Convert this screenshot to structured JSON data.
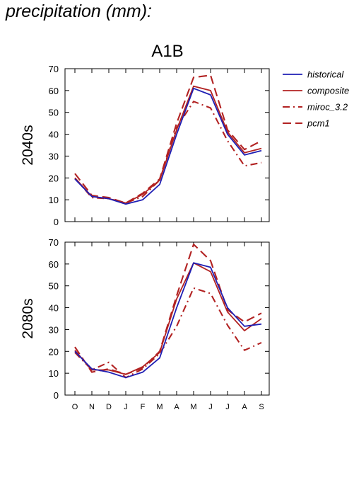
{
  "header": {
    "title": "precipitation (mm):"
  },
  "chart_data": {
    "type": "line",
    "title": "A1B",
    "categories": [
      "O",
      "N",
      "D",
      "J",
      "F",
      "M",
      "A",
      "M",
      "J",
      "J",
      "A",
      "S"
    ],
    "ylim": [
      0,
      70
    ],
    "yticks": [
      0,
      10,
      20,
      30,
      40,
      50,
      60,
      70
    ],
    "grid": false,
    "legend_position": "right",
    "series_styles": [
      {
        "name": "historical",
        "color": "#1f1fb4",
        "dash": "solid"
      },
      {
        "name": "composite",
        "color": "#b22222",
        "dash": "solid"
      },
      {
        "name": "miroc_3.2",
        "color": "#b22222",
        "dash": "dashdot"
      },
      {
        "name": "pcm1",
        "color": "#b22222",
        "dash": "dashed"
      }
    ],
    "panels": [
      {
        "label": "2040s",
        "series": [
          {
            "name": "historical",
            "values": [
              19.5,
              11.5,
              10.5,
              8,
              10,
              17,
              40,
              61,
              58,
              40,
              30.5,
              32.5
            ]
          },
          {
            "name": "composite",
            "values": [
              20,
              11.5,
              10.5,
              8.5,
              12.5,
              19,
              42,
              62,
              60,
              41,
              31.5,
              33.5
            ]
          },
          {
            "name": "miroc_3.2",
            "values": [
              20,
              11,
              10.5,
              8.5,
              11.5,
              19,
              43,
              55,
              52,
              37,
              25.5,
              27
            ]
          },
          {
            "name": "pcm1",
            "values": [
              22,
              12,
              11,
              8.5,
              13,
              19.5,
              45,
              66,
              67,
              42,
              33,
              37
            ]
          }
        ]
      },
      {
        "label": "2080s",
        "series": [
          {
            "name": "historical",
            "values": [
              20,
              12,
              10.5,
              8,
              10.5,
              17,
              40,
              60.5,
              58.5,
              40,
              31.5,
              32.5
            ]
          },
          {
            "name": "composite",
            "values": [
              20.5,
              11.5,
              11.5,
              9.5,
              13,
              19.5,
              44,
              60.5,
              56.5,
              38,
              29.5,
              35
            ]
          },
          {
            "name": "miroc_3.2",
            "values": [
              19.5,
              11.5,
              15,
              8,
              12,
              19,
              31.5,
              49,
              46.5,
              32,
              20.5,
              24
            ]
          },
          {
            "name": "pcm1",
            "values": [
              22,
              10.5,
              12,
              9.5,
              12.5,
              20,
              45.5,
              69,
              61.5,
              39,
              33.5,
              37.5
            ]
          }
        ]
      }
    ]
  }
}
